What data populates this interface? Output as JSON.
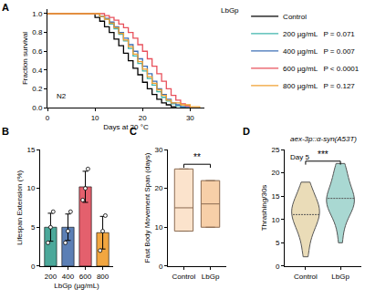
{
  "chart_data": [
    {
      "panel": "A",
      "type": "line",
      "annotation": "N2",
      "x_label": "Days at 20 °C",
      "y_label": "Fraction survival",
      "legend_title": "LbGp",
      "legend": "right",
      "xlim": [
        0,
        33
      ],
      "xticks": [
        0,
        10,
        20,
        30
      ],
      "ylim": [
        0,
        1.05
      ],
      "yticks": [
        {
          "value": 0,
          "label": "0.0"
        },
        {
          "value": 0.2,
          "label": "0.2"
        },
        {
          "value": 0.4,
          "label": "0.4"
        },
        {
          "value": 0.6,
          "label": "0.6"
        },
        {
          "value": 0.8,
          "label": "0.8"
        },
        {
          "value": 1,
          "label": "1.0"
        }
      ],
      "series": [
        {
          "name": "Control",
          "color": "#000000",
          "x": [
            0,
            8,
            10,
            11,
            12,
            13,
            14,
            15,
            16,
            17,
            18,
            19,
            20,
            21,
            22,
            23,
            24,
            25,
            26,
            27
          ],
          "values": [
            1,
            1,
            0.96,
            0.92,
            0.86,
            0.8,
            0.73,
            0.66,
            0.58,
            0.5,
            0.42,
            0.35,
            0.27,
            0.2,
            0.14,
            0.09,
            0.05,
            0.03,
            0.01,
            0
          ]
        },
        {
          "name": "200 µg/mL",
          "p": "P = 0.071",
          "color": "#3fb5ad",
          "x": [
            0,
            9,
            11,
            12,
            13,
            14,
            15,
            16,
            17,
            18,
            19,
            20,
            21,
            22,
            23,
            24,
            25,
            26,
            27,
            28,
            29
          ],
          "values": [
            1,
            1,
            0.97,
            0.94,
            0.89,
            0.84,
            0.78,
            0.71,
            0.63,
            0.55,
            0.47,
            0.39,
            0.31,
            0.24,
            0.17,
            0.11,
            0.07,
            0.04,
            0.02,
            0.01,
            0
          ]
        },
        {
          "name": "400 µg/mL",
          "p": "P = 0.007",
          "color": "#3d6fb6",
          "x": [
            0,
            9,
            11,
            12,
            13,
            14,
            15,
            16,
            17,
            18,
            19,
            20,
            21,
            22,
            23,
            24,
            25,
            26,
            27,
            28,
            30
          ],
          "values": [
            1,
            1,
            0.97,
            0.95,
            0.91,
            0.86,
            0.8,
            0.74,
            0.67,
            0.6,
            0.52,
            0.44,
            0.36,
            0.28,
            0.2,
            0.14,
            0.09,
            0.05,
            0.03,
            0.01,
            0
          ]
        },
        {
          "name": "600 µg/mL",
          "p": "P < 0.0001",
          "color": "#e8505b",
          "x": [
            0,
            10,
            12,
            13,
            14,
            15,
            16,
            17,
            18,
            19,
            20,
            21,
            22,
            23,
            24,
            25,
            26,
            27,
            28,
            29,
            30
          ],
          "values": [
            1,
            1,
            0.98,
            0.96,
            0.93,
            0.89,
            0.85,
            0.8,
            0.74,
            0.67,
            0.6,
            0.52,
            0.44,
            0.36,
            0.28,
            0.2,
            0.13,
            0.08,
            0.04,
            0.02,
            0
          ]
        },
        {
          "name": "800 µg/mL",
          "p": "P = 0.127",
          "color": "#f0a030",
          "x": [
            0,
            9,
            11,
            12,
            13,
            14,
            15,
            16,
            17,
            18,
            19,
            20,
            21,
            22,
            23,
            24,
            25,
            26,
            28,
            30,
            32
          ],
          "values": [
            1,
            1,
            0.97,
            0.94,
            0.9,
            0.85,
            0.79,
            0.72,
            0.65,
            0.57,
            0.49,
            0.41,
            0.33,
            0.26,
            0.19,
            0.13,
            0.08,
            0.05,
            0.03,
            0.01,
            0
          ]
        }
      ]
    },
    {
      "panel": "B",
      "type": "bar",
      "categories": [
        "200",
        "400",
        "600",
        "800"
      ],
      "values": [
        5.0,
        5.0,
        10.2,
        4.3
      ],
      "errors": [
        1.8,
        1.7,
        2.0,
        2.1
      ],
      "points": [
        [
          3,
          5,
          7
        ],
        [
          3,
          4.5,
          7
        ],
        [
          8.5,
          10,
          12.5
        ],
        [
          2,
          4.5,
          6.5
        ]
      ],
      "colors": [
        "#4ba89a",
        "#5b7fb5",
        "#e4606d",
        "#f2a640"
      ],
      "x_label": "LbGp (µg/mL)",
      "y_label": "Lifespan Extension (%)",
      "ylim": [
        0,
        15
      ],
      "yticks": [
        0,
        5,
        10,
        15
      ]
    },
    {
      "panel": "C",
      "type": "box",
      "categories": [
        "Control",
        "LbGp"
      ],
      "low": [
        9,
        10
      ],
      "median": [
        15,
        16
      ],
      "high": [
        25,
        22
      ],
      "colors": [
        "#fbe3cc",
        "#f7cfa8"
      ],
      "y_label": "Fast Body Movement Span (days)",
      "ylim": [
        0,
        30
      ],
      "yticks": [
        0,
        10,
        20,
        30
      ],
      "significance": "**"
    },
    {
      "panel": "D",
      "type": "violin",
      "title": "aex-3p::α-syn(A53T)",
      "annotation": "Day 5",
      "categories": [
        "Control",
        "LbGp"
      ],
      "series_values": [
        [
          2,
          4,
          6,
          7,
          8,
          9,
          9,
          10,
          10,
          11,
          11,
          12,
          12,
          12,
          13,
          13,
          14,
          14,
          15,
          16,
          17,
          18
        ],
        [
          5,
          8,
          10,
          11,
          12,
          12,
          13,
          13,
          14,
          14,
          14,
          15,
          15,
          16,
          16,
          17,
          18,
          19,
          20,
          21,
          22
        ]
      ],
      "colors": [
        "#eadcb8",
        "#a9d8d2"
      ],
      "y_label": "Thrashing/30s",
      "ylim": [
        0,
        25
      ],
      "yticks": [
        0,
        5,
        10,
        15,
        20,
        25
      ],
      "significance": "***"
    }
  ]
}
